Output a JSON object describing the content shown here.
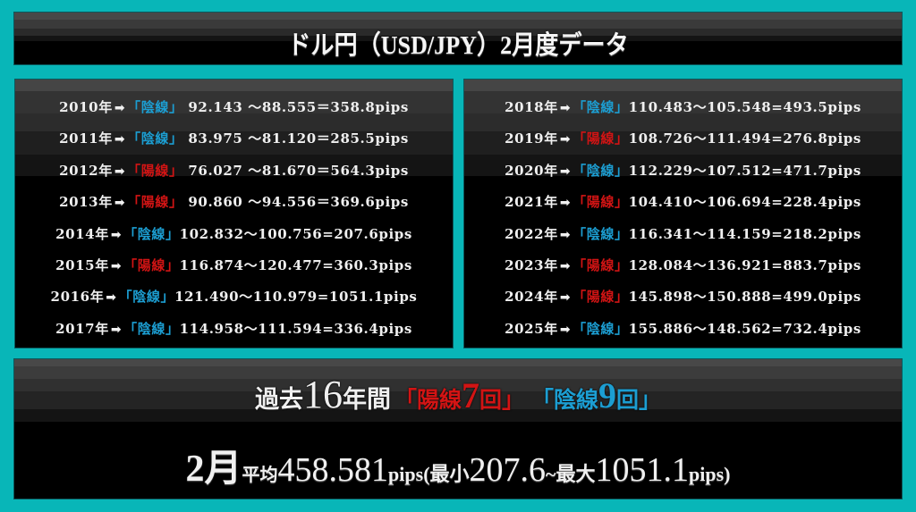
{
  "header": {
    "title": "ドル円（USD/JPY）2月度データ"
  },
  "colors": {
    "background": "#08b6b8",
    "bearish_blue": "#1c9ed2",
    "bullish_red": "#d21414"
  },
  "left_panel": {
    "rows": [
      {
        "year": "2010年",
        "arrow": "➡",
        "type": "陰線",
        "color": "blue",
        "open": "92.143",
        "close": "88.555",
        "range": "358.8pips",
        "text": " 92.143 〜88.555＝358.8pips"
      },
      {
        "year": "2011年",
        "arrow": "➡",
        "type": "陰線",
        "color": "blue",
        "open": "83.975",
        "close": "81.120",
        "range": "285.5pips",
        "text": " 83.975 〜81.120＝285.5pips"
      },
      {
        "year": "2012年",
        "arrow": "➡",
        "type": "陽線",
        "color": "red",
        "open": "76.027",
        "close": "81.670",
        "range": "564.3pips",
        "text": " 76.027 〜81.670＝564.3pips"
      },
      {
        "year": "2013年",
        "arrow": "➡",
        "type": "陽線",
        "color": "red",
        "open": "90.860",
        "close": "94.556",
        "range": "369.6pips",
        "text": " 90.860 〜94.556＝369.6pips"
      },
      {
        "year": "2014年",
        "arrow": "➡",
        "type": "陰線",
        "color": "blue",
        "open": "102.832",
        "close": "100.756",
        "range": "207.6pips",
        "text": "102.832〜100.756=207.6pips"
      },
      {
        "year": "2015年",
        "arrow": "➡",
        "type": "陽線",
        "color": "red",
        "open": "116.874",
        "close": "120.477",
        "range": "360.3pips",
        "text": "116.874〜120.477=360.3pips"
      },
      {
        "year": "2016年",
        "arrow": "➡",
        "type": "陰線",
        "color": "blue",
        "open": "121.490",
        "close": "110.979",
        "range": "1051.1pips",
        "text": "121.490〜110.979=1051.1pips"
      },
      {
        "year": "2017年",
        "arrow": "➡",
        "type": "陰線",
        "color": "blue",
        "open": "114.958",
        "close": "111.594",
        "range": "336.4pips",
        "text": "114.958〜111.594=336.4pips"
      }
    ]
  },
  "right_panel": {
    "rows": [
      {
        "year": "2018年",
        "arrow": "➡",
        "type": "陰線",
        "color": "blue",
        "open": "110.483",
        "close": "105.548",
        "range": "493.5pips",
        "text": "110.483〜105.548=493.5pips"
      },
      {
        "year": "2019年",
        "arrow": "➡",
        "type": "陽線",
        "color": "red",
        "open": "108.726",
        "close": "111.494",
        "range": "276.8pips",
        "text": "108.726〜111.494=276.8pips"
      },
      {
        "year": "2020年",
        "arrow": "➡",
        "type": "陰線",
        "color": "blue",
        "open": "112.229",
        "close": "107.512",
        "range": "471.7pips",
        "text": "112.229〜107.512=471.7pips"
      },
      {
        "year": "2021年",
        "arrow": "➡",
        "type": "陽線",
        "color": "red",
        "open": "104.410",
        "close": "106.694",
        "range": "228.4pips",
        "text": "104.410〜106.694=228.4pips"
      },
      {
        "year": "2022年",
        "arrow": "➡",
        "type": "陰線",
        "color": "blue",
        "open": "116.341",
        "close": "114.159",
        "range": "218.2pips",
        "text": "116.341〜114.159=218.2pips"
      },
      {
        "year": "2023年",
        "arrow": "➡",
        "type": "陽線",
        "color": "red",
        "open": "128.084",
        "close": "136.921",
        "range": "883.7pips",
        "text": "128.084〜136.921=883.7pips"
      },
      {
        "year": "2024年",
        "arrow": "➡",
        "type": "陽線",
        "color": "red",
        "open": "145.898",
        "close": "150.888",
        "range": "499.0pips",
        "text": "145.898〜150.888=499.0pips"
      },
      {
        "year": "2025年",
        "arrow": "➡",
        "type": "陰線",
        "color": "blue",
        "open": "155.886",
        "close": "148.562",
        "range": "732.4pips",
        "text": "155.886〜148.562=732.4pips"
      }
    ]
  },
  "summary": {
    "line1": {
      "prefix": "過去",
      "years": "16",
      "years_suffix": "年間",
      "bull_open": "「陽線",
      "bull_count": "7",
      "bull_close": "回」",
      "bear_open": "「陰線",
      "bear_count": "9",
      "bear_close": "回」"
    },
    "line2": {
      "month": "2月",
      "avg_label": "平均",
      "avg_value": "458.581",
      "pips1": "pips",
      "min_open": "(最小",
      "min_value": "207.6",
      "tilde": "~",
      "max_label": "最大",
      "max_value": "1051.1",
      "pips2": "pips)"
    }
  }
}
